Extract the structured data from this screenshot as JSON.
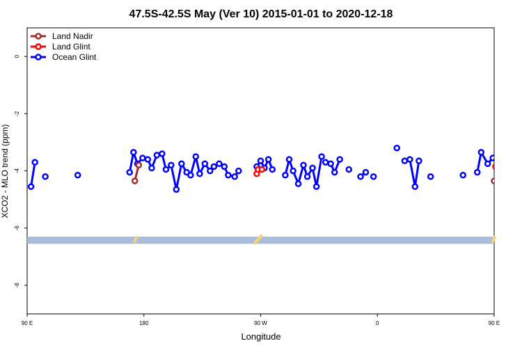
{
  "chart_data": {
    "type": "line",
    "title": "47.5S-42.5S May (Ver 10)   2015-01-01 to 2020-12-18",
    "xlabel": "Longitude",
    "ylabel": "XCO2 - MLO trend (ppm)",
    "xlim": [
      90,
      450
    ],
    "ylim": [
      -9,
      1
    ],
    "x_ticks": [
      {
        "value": 90,
        "label": "90 E"
      },
      {
        "value": 180,
        "label": "180"
      },
      {
        "value": 270,
        "label": "90 W"
      },
      {
        "value": 360,
        "label": "0"
      },
      {
        "value": 450,
        "label": "90 E"
      },
      {
        "value": 540,
        "label": "180"
      }
    ],
    "y_ticks": [
      {
        "value": 0,
        "label": "0"
      },
      {
        "value": -2,
        "label": "-2"
      },
      {
        "value": -4,
        "label": "-4"
      },
      {
        "value": -6,
        "label": "-6"
      },
      {
        "value": -8,
        "label": "-8"
      }
    ],
    "legend_position": "top-left",
    "band": {
      "y_min": -6.55,
      "y_max": -6.3,
      "color": "#a9bcd9"
    },
    "band_highlights": {
      "color": "#f5d27a",
      "x": [
        173,
        174,
        266,
        267,
        268,
        269,
        270,
        449,
        450
      ],
      "y": [
        -6.45,
        -6.35,
        -6.5,
        -6.45,
        -6.4,
        -6.35,
        -6.3,
        -6.45,
        -6.35
      ]
    },
    "series": [
      {
        "name": "Land Nadir",
        "color": "#a52a2a",
        "segments": [
          {
            "x": [
              173,
              176
            ],
            "y": [
              -4.35,
              -3.8
            ]
          },
          {
            "x": [
              450,
              452
            ],
            "y": [
              -4.35,
              -3.85
            ]
          }
        ]
      },
      {
        "name": "Land Glint",
        "color": "#ff0000",
        "segments": [
          {
            "x": [
              267,
              268,
              271
            ],
            "y": [
              -4.1,
              -3.95,
              -3.95
            ]
          },
          {
            "x": [
              451,
              453
            ],
            "y": [
              -3.85,
              -3.8
            ]
          }
        ]
      },
      {
        "name": "Ocean Glint",
        "color": "#0000ff",
        "segments": [
          {
            "x": [
              93,
              96
            ],
            "y": [
              -4.55,
              -3.7
            ]
          },
          {
            "x": [
              104
            ],
            "y": [
              -4.2
            ]
          },
          {
            "x": [
              129
            ],
            "y": [
              -4.15
            ]
          },
          {
            "x": [
              169,
              172,
              175,
              179,
              183,
              186,
              190,
              194,
              197,
              201,
              205,
              209,
              213,
              216,
              220,
              223,
              227,
              231,
              234,
              238,
              242,
              245,
              250,
              253
            ],
            "y": [
              -4.05,
              -3.35,
              -3.75,
              -3.55,
              -3.6,
              -3.9,
              -3.45,
              -3.4,
              -3.95,
              -3.8,
              -4.65,
              -3.75,
              -4.05,
              -4.15,
              -3.5,
              -4.1,
              -3.75,
              -4.0,
              -3.85,
              -3.75,
              -3.85,
              -4.15,
              -4.2,
              -4.0
            ]
          },
          {
            "x": [
              267,
              270,
              273,
              276,
              279
            ],
            "y": [
              -3.85,
              -3.65,
              -3.9,
              -3.6,
              -3.95
            ]
          },
          {
            "x": [
              289,
              292,
              295,
              299,
              303,
              306,
              310,
              313,
              317
            ],
            "y": [
              -4.15,
              -3.6,
              -4.0,
              -4.45,
              -3.8,
              -4.2,
              -3.9,
              -4.55,
              -3.5
            ]
          },
          {
            "x": [
              320,
              324,
              327,
              331
            ],
            "y": [
              -3.7,
              -3.75,
              -4.05,
              -3.6
            ]
          },
          {
            "x": [
              338
            ],
            "y": [
              -3.95
            ]
          },
          {
            "x": [
              347,
              351
            ],
            "y": [
              -4.2,
              -4.05
            ]
          },
          {
            "x": [
              357
            ],
            "y": [
              -4.2
            ]
          },
          {
            "x": [
              375
            ],
            "y": [
              -3.2
            ]
          },
          {
            "x": [
              381,
              385,
              389,
              392
            ],
            "y": [
              -3.65,
              -3.6,
              -4.55,
              -3.65
            ]
          },
          {
            "x": [
              401
            ],
            "y": [
              -4.2
            ]
          },
          {
            "x": [
              426
            ],
            "y": [
              -4.15
            ]
          },
          {
            "x": [
              437,
              440,
              445,
              449,
              452
            ],
            "y": [
              -4.05,
              -3.35,
              -3.75,
              -3.55,
              -3.6
            ]
          }
        ]
      }
    ]
  }
}
